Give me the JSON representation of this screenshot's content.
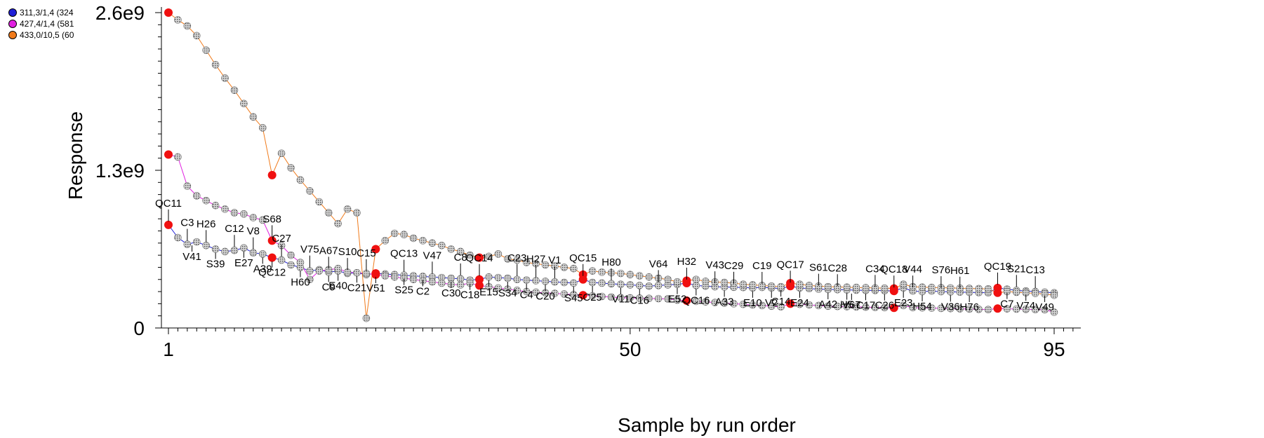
{
  "chart_data": {
    "type": "scatter",
    "xlabel": "Sample by run order",
    "ylabel": "Response",
    "xlim": [
      0,
      97
    ],
    "ylim": [
      0,
      2600000000
    ],
    "x_ticks": [
      {
        "value": 1,
        "label": "1"
      },
      {
        "value": 50,
        "label": "50"
      },
      {
        "value": 95,
        "label": "95"
      }
    ],
    "y_ticks": [
      {
        "value": 0,
        "label": "0"
      },
      {
        "value": 1300000000,
        "label": "1.3e9"
      },
      {
        "value": 2600000000,
        "label": "2.6e9"
      }
    ],
    "grid": false,
    "legend_position": "top-left",
    "legend": [
      {
        "name": "311,3/1,4 (324",
        "color": "#1f1fd6"
      },
      {
        "name": "427,4/1,4 (581",
        "color": "#e020e0"
      },
      {
        "name": "433,0/10,5 (60",
        "color": "#f07a1a"
      }
    ],
    "point_color": "#8c8c8c",
    "highlight_color": "#f01010",
    "qc_indices": [
      1,
      12,
      23,
      34,
      45,
      56,
      67,
      78,
      89
    ],
    "series": [
      {
        "name": "311,3/1,4 (324",
        "color": "#1f1fd6",
        "y": [
          850000000,
          745000000,
          690000000,
          710000000,
          680000000,
          650000000,
          630000000,
          640000000,
          660000000,
          620000000,
          610000000,
          580000000,
          560000000,
          520000000,
          500000000,
          470000000,
          480000000,
          460000000,
          470000000,
          450000000,
          455000000,
          440000000,
          450000000,
          445000000,
          440000000,
          435000000,
          430000000,
          425000000,
          420000000,
          415000000,
          410000000,
          405000000,
          395000000,
          400000000,
          420000000,
          415000000,
          410000000,
          400000000,
          395000000,
          390000000,
          385000000,
          380000000,
          375000000,
          370000000,
          400000000,
          375000000,
          370000000,
          365000000,
          360000000,
          355000000,
          350000000,
          345000000,
          350000000,
          355000000,
          360000000,
          370000000,
          350000000,
          345000000,
          340000000,
          338000000,
          336000000,
          334000000,
          330000000,
          335000000,
          330000000,
          325000000,
          345000000,
          330000000,
          325000000,
          320000000,
          318000000,
          316000000,
          314000000,
          312000000,
          310000000,
          310000000,
          308000000,
          305000000,
          330000000,
          305000000,
          300000000,
          305000000,
          300000000,
          298000000,
          296000000,
          294000000,
          292000000,
          290000000,
          330000000,
          320000000,
          310000000,
          305000000,
          300000000,
          295000000,
          290000000
        ]
      },
      {
        "name": "427,4/1,4 (581",
        "color": "#e020e0",
        "y": [
          1430000000,
          1410000000,
          1170000000,
          1090000000,
          1050000000,
          1010000000,
          980000000,
          950000000,
          940000000,
          910000000,
          890000000,
          720000000,
          680000000,
          600000000,
          540000000,
          400000000,
          470000000,
          480000000,
          490000000,
          460000000,
          455000000,
          450000000,
          440000000,
          430000000,
          420000000,
          410000000,
          400000000,
          390000000,
          380000000,
          370000000,
          360000000,
          355000000,
          370000000,
          350000000,
          340000000,
          330000000,
          320000000,
          310000000,
          300000000,
          295000000,
          290000000,
          285000000,
          280000000,
          275000000,
          270000000,
          265000000,
          260000000,
          255000000,
          250000000,
          248000000,
          246000000,
          244000000,
          242000000,
          240000000,
          230000000,
          225000000,
          220000000,
          215000000,
          210000000,
          205000000,
          200000000,
          195000000,
          190000000,
          185000000,
          180000000,
          175000000,
          200000000,
          195000000,
          190000000,
          185000000,
          180000000,
          178000000,
          176000000,
          174000000,
          172000000,
          170000000,
          168000000,
          166000000,
          185000000,
          168000000,
          166000000,
          164000000,
          162000000,
          160000000,
          158000000,
          156000000,
          154000000,
          152000000,
          160000000,
          158000000,
          156000000,
          154000000,
          152000000,
          150000000,
          130000000
        ]
      },
      {
        "name": "433,0/10,5 (60",
        "color": "#f07a1a",
        "y": [
          2600000000,
          2540000000,
          2490000000,
          2410000000,
          2290000000,
          2170000000,
          2060000000,
          1960000000,
          1850000000,
          1740000000,
          1650000000,
          1260000000,
          1440000000,
          1320000000,
          1220000000,
          1130000000,
          1040000000,
          950000000,
          860000000,
          980000000,
          950000000,
          80000000,
          650000000,
          720000000,
          780000000,
          770000000,
          740000000,
          720000000,
          700000000,
          680000000,
          650000000,
          630000000,
          600000000,
          580000000,
          590000000,
          610000000,
          570000000,
          560000000,
          540000000,
          530000000,
          520000000,
          510000000,
          500000000,
          490000000,
          440000000,
          470000000,
          460000000,
          455000000,
          450000000,
          440000000,
          430000000,
          420000000,
          410000000,
          400000000,
          380000000,
          390000000,
          400000000,
          385000000,
          380000000,
          375000000,
          370000000,
          360000000,
          355000000,
          350000000,
          345000000,
          340000000,
          370000000,
          360000000,
          350000000,
          345000000,
          340000000,
          338000000,
          336000000,
          334000000,
          332000000,
          330000000,
          328000000,
          326000000,
          360000000,
          340000000,
          336000000,
          334000000,
          332000000,
          330000000,
          328000000,
          326000000,
          324000000,
          322000000,
          290000000,
          300000000,
          295000000,
          290000000,
          285000000,
          280000000,
          270000000
        ]
      }
    ],
    "point_labels": [
      {
        "text": "QC11",
        "series": 0,
        "x": 1,
        "pos": "above"
      },
      {
        "text": "C3",
        "series": 0,
        "x": 3,
        "pos": "above"
      },
      {
        "text": "V41",
        "series": 0,
        "x": 3.5,
        "pos": "below"
      },
      {
        "text": "H26",
        "series": 0,
        "x": 5,
        "pos": "above"
      },
      {
        "text": "S39",
        "series": 0,
        "x": 6,
        "pos": "below"
      },
      {
        "text": "C12",
        "series": 0,
        "x": 8,
        "pos": "above"
      },
      {
        "text": "E27",
        "series": 0,
        "x": 9,
        "pos": "below"
      },
      {
        "text": "V8",
        "series": 0,
        "x": 10,
        "pos": "above"
      },
      {
        "text": "A39",
        "series": 0,
        "x": 11,
        "pos": "below"
      },
      {
        "text": "S68",
        "series": 1,
        "x": 12,
        "pos": "above"
      },
      {
        "text": "QC12",
        "series": 0,
        "x": 12,
        "pos": "below"
      },
      {
        "text": "C27",
        "series": 0,
        "x": 13,
        "pos": "above"
      },
      {
        "text": "V75",
        "series": 0,
        "x": 16,
        "pos": "above"
      },
      {
        "text": "H60",
        "series": 0,
        "x": 15,
        "pos": "below"
      },
      {
        "text": "A67",
        "series": 0,
        "x": 18,
        "pos": "above"
      },
      {
        "text": "C9",
        "series": 0,
        "x": 18,
        "pos": "below"
      },
      {
        "text": "E40",
        "series": 0,
        "x": 19,
        "pos": "below"
      },
      {
        "text": "S10",
        "series": 0,
        "x": 20,
        "pos": "above"
      },
      {
        "text": "C21",
        "series": 0,
        "x": 21,
        "pos": "below"
      },
      {
        "text": "C15",
        "series": 0,
        "x": 22,
        "pos": "above"
      },
      {
        "text": "V51",
        "series": 0,
        "x": 23,
        "pos": "below"
      },
      {
        "text": "QC13",
        "series": 0,
        "x": 26,
        "pos": "above"
      },
      {
        "text": "S25",
        "series": 0,
        "x": 26,
        "pos": "below"
      },
      {
        "text": "C2",
        "series": 0,
        "x": 28,
        "pos": "below"
      },
      {
        "text": "V47",
        "series": 0,
        "x": 29,
        "pos": "above"
      },
      {
        "text": "C30",
        "series": 0,
        "x": 31,
        "pos": "below"
      },
      {
        "text": "C8",
        "series": 0,
        "x": 32,
        "pos": "above"
      },
      {
        "text": "C18",
        "series": 0,
        "x": 33,
        "pos": "below"
      },
      {
        "text": "QC14",
        "series": 0,
        "x": 34,
        "pos": "above"
      },
      {
        "text": "E15",
        "series": 0,
        "x": 35,
        "pos": "below"
      },
      {
        "text": "S34",
        "series": 0,
        "x": 37,
        "pos": "below"
      },
      {
        "text": "C23",
        "series": 0,
        "x": 38,
        "pos": "above"
      },
      {
        "text": "C4",
        "series": 0,
        "x": 39,
        "pos": "below"
      },
      {
        "text": "H27",
        "series": 0,
        "x": 40,
        "pos": "above"
      },
      {
        "text": "C20",
        "series": 0,
        "x": 41,
        "pos": "below"
      },
      {
        "text": "V1",
        "series": 0,
        "x": 42,
        "pos": "above"
      },
      {
        "text": "S45",
        "series": 0,
        "x": 44,
        "pos": "below"
      },
      {
        "text": "QC15",
        "series": 0,
        "x": 45,
        "pos": "above"
      },
      {
        "text": "C25",
        "series": 0,
        "x": 46,
        "pos": "below"
      },
      {
        "text": "H80",
        "series": 0,
        "x": 48,
        "pos": "above"
      },
      {
        "text": "V11",
        "series": 0,
        "x": 49,
        "pos": "below"
      },
      {
        "text": "C16",
        "series": 0,
        "x": 51,
        "pos": "below"
      },
      {
        "text": "V64",
        "series": 0,
        "x": 53,
        "pos": "above"
      },
      {
        "text": "E52",
        "series": 0,
        "x": 55,
        "pos": "below"
      },
      {
        "text": "H32",
        "series": 0,
        "x": 56,
        "pos": "above"
      },
      {
        "text": "QC16",
        "series": 0,
        "x": 57,
        "pos": "below"
      },
      {
        "text": "V43",
        "series": 0,
        "x": 59,
        "pos": "above"
      },
      {
        "text": "A33",
        "series": 0,
        "x": 60,
        "pos": "below"
      },
      {
        "text": "C29",
        "series": 0,
        "x": 61,
        "pos": "above"
      },
      {
        "text": "E10",
        "series": 0,
        "x": 63,
        "pos": "below"
      },
      {
        "text": "C19",
        "series": 0,
        "x": 64,
        "pos": "above"
      },
      {
        "text": "V2",
        "series": 0,
        "x": 65,
        "pos": "below"
      },
      {
        "text": "C14",
        "series": 2,
        "x": 66,
        "pos": "below"
      },
      {
        "text": "QC17",
        "series": 0,
        "x": 67,
        "pos": "above"
      },
      {
        "text": "E24",
        "series": 0,
        "x": 68,
        "pos": "below"
      },
      {
        "text": "S61",
        "series": 0,
        "x": 70,
        "pos": "above"
      },
      {
        "text": "A42",
        "series": 0,
        "x": 71,
        "pos": "below"
      },
      {
        "text": "C28",
        "series": 0,
        "x": 72,
        "pos": "above"
      },
      {
        "text": "H5",
        "series": 0,
        "x": 73,
        "pos": "below"
      },
      {
        "text": "V67",
        "series": 0,
        "x": 73.5,
        "pos": "below"
      },
      {
        "text": "C17",
        "series": 0,
        "x": 75,
        "pos": "below"
      },
      {
        "text": "C34",
        "series": 0,
        "x": 76,
        "pos": "above"
      },
      {
        "text": "C26",
        "series": 0,
        "x": 77,
        "pos": "below"
      },
      {
        "text": "QC18",
        "series": 0,
        "x": 78,
        "pos": "above"
      },
      {
        "text": "E23",
        "series": 0,
        "x": 79,
        "pos": "below"
      },
      {
        "text": "V44",
        "series": 0,
        "x": 80,
        "pos": "above"
      },
      {
        "text": "H54",
        "series": 0,
        "x": 81,
        "pos": "below"
      },
      {
        "text": "S76",
        "series": 0,
        "x": 83,
        "pos": "above"
      },
      {
        "text": "V36",
        "series": 0,
        "x": 84,
        "pos": "below"
      },
      {
        "text": "H61",
        "series": 0,
        "x": 85,
        "pos": "above"
      },
      {
        "text": "H76",
        "series": 0,
        "x": 86,
        "pos": "below"
      },
      {
        "text": "QC19",
        "series": 0,
        "x": 89,
        "pos": "above"
      },
      {
        "text": "C7",
        "series": 0,
        "x": 90,
        "pos": "below"
      },
      {
        "text": "S21",
        "series": 0,
        "x": 91,
        "pos": "above"
      },
      {
        "text": "V74",
        "series": 0,
        "x": 92,
        "pos": "below"
      },
      {
        "text": "C13",
        "series": 0,
        "x": 93,
        "pos": "above"
      },
      {
        "text": "V49",
        "series": 0,
        "x": 94,
        "pos": "below"
      }
    ]
  }
}
